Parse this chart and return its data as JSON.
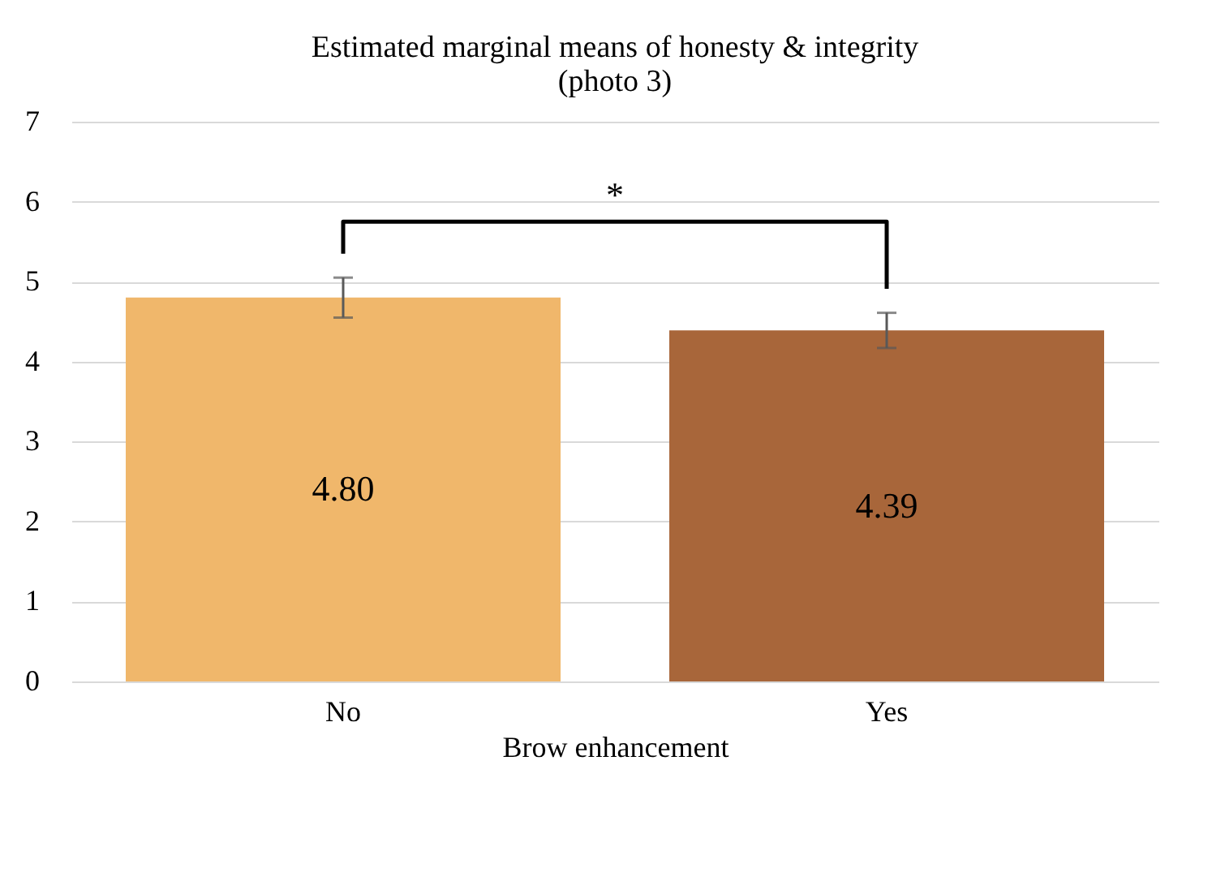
{
  "chart_data": {
    "type": "bar",
    "title": [
      "Estimated marginal means of honesty & integrity",
      "(photo 3)"
    ],
    "xlabel": "Brow enhancement",
    "categories": [
      "No",
      "Yes"
    ],
    "values": [
      4.8,
      4.39
    ],
    "value_labels": [
      "4.80",
      "4.39"
    ],
    "errors": [
      0.25,
      0.22
    ],
    "colors": [
      "#f0b76b",
      "#a8663a"
    ],
    "ylim": [
      0,
      7
    ],
    "yticks": [
      0,
      1,
      2,
      3,
      4,
      5,
      6,
      7
    ],
    "grid": "y",
    "annotations": [
      "*"
    ]
  }
}
